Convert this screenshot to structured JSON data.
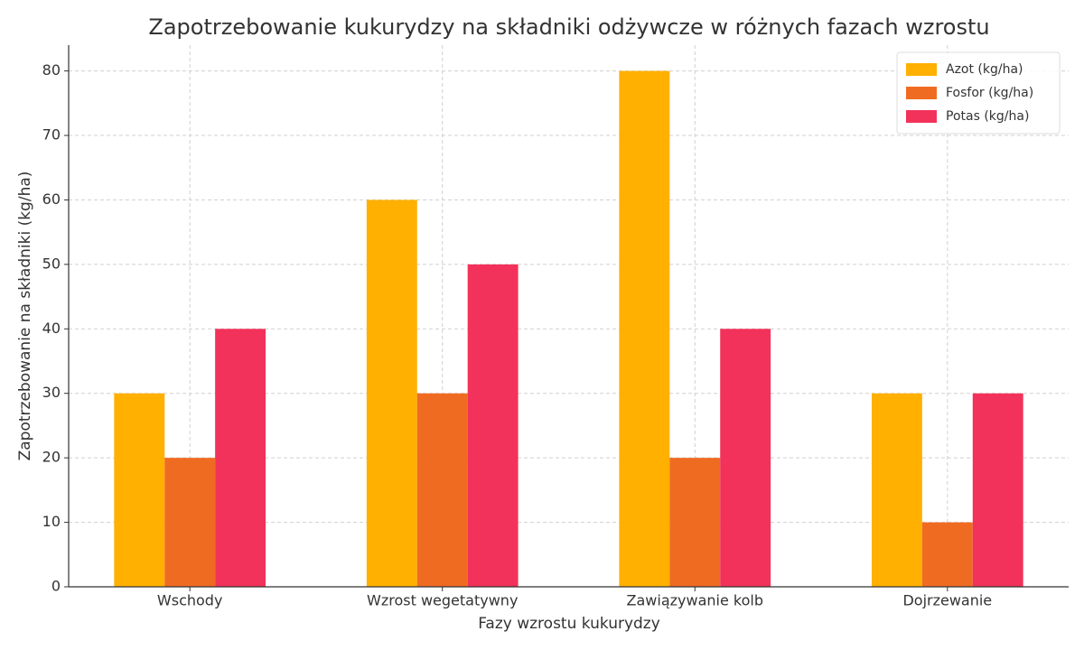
{
  "chart_data": {
    "type": "bar",
    "title": "Zapotrzebowanie kukurydzy na składniki odżywcze w różnych fazach wzrostu",
    "xlabel": "Fazy wzrostu kukurydzy",
    "ylabel": "Zapotrzebowanie na składniki (kg/ha)",
    "categories": [
      "Wschody",
      "Wzrost wegetatywny",
      "Zawiązywanie kolb",
      "Dojrzewanie"
    ],
    "series": [
      {
        "name": "Azot (kg/ha)",
        "color": "#ffb000",
        "values": [
          30,
          60,
          80,
          30
        ]
      },
      {
        "name": "Fosfor (kg/ha)",
        "color": "#f06b22",
        "values": [
          20,
          30,
          20,
          10
        ]
      },
      {
        "name": "Potas (kg/ha)",
        "color": "#f2325a",
        "values": [
          40,
          50,
          40,
          30
        ]
      }
    ],
    "ylim": [
      0,
      84
    ],
    "yticks": [
      0,
      10,
      20,
      30,
      40,
      50,
      60,
      70,
      80
    ],
    "grid": true,
    "legend": "upper right"
  }
}
